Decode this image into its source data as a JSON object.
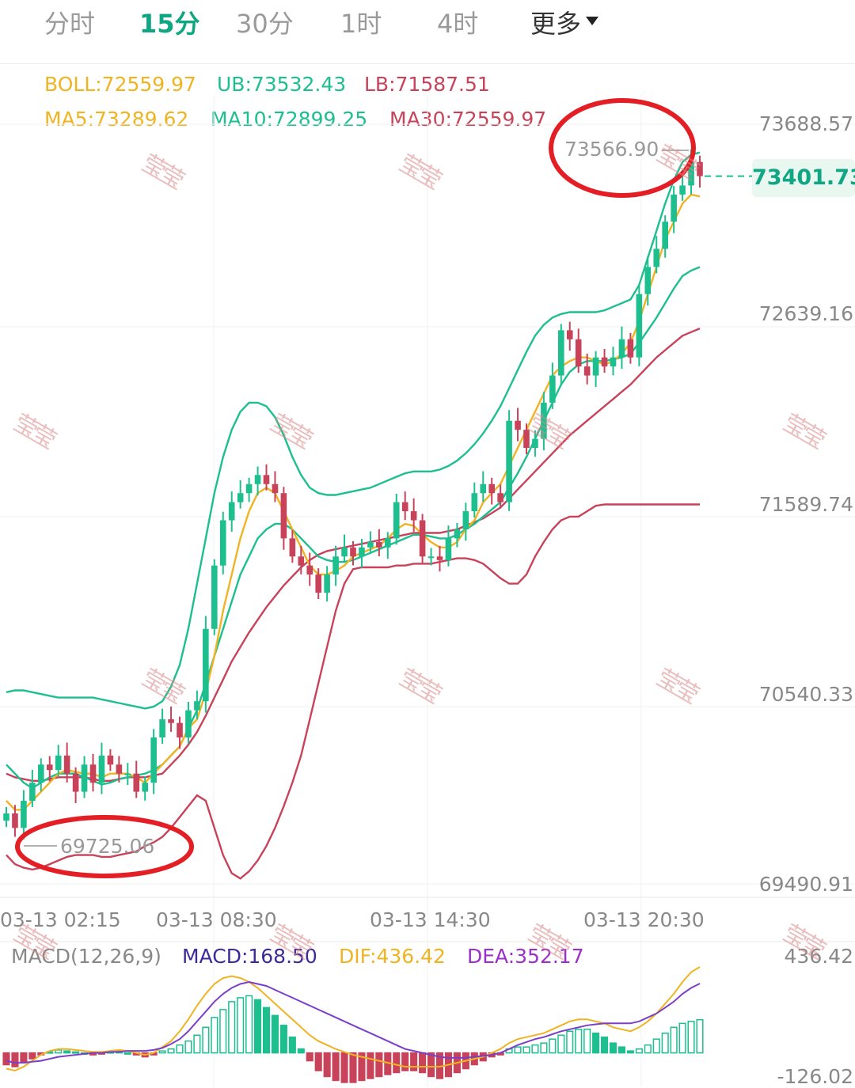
{
  "tabs": [
    {
      "label": "分时",
      "active": false
    },
    {
      "label": "15分",
      "active": true
    },
    {
      "label": "30分",
      "active": false
    },
    {
      "label": "1时",
      "active": false
    },
    {
      "label": "4时",
      "active": false
    },
    {
      "label": "更多",
      "active": false
    }
  ],
  "indicators": {
    "boll": "BOLL:72559.97",
    "ub": "UB:73532.43",
    "lb": "LB:71587.51",
    "ma5": "MA5:73289.62",
    "ma10": "MA10:72899.25",
    "ma30": "MA30:72559.97"
  },
  "colors": {
    "up": "#1dbf8f",
    "down": "#c8425a",
    "ma5": "#f0b321",
    "ma10": "#1dbf8f",
    "ma30": "#c8425a",
    "macd_line": "#7b3fc9",
    "dif_line": "#f0b321",
    "accent": "#11a683",
    "annotation": "#e31e24",
    "macd_label": "#3d2a9c",
    "dea_label": "#9b30c9"
  },
  "last_price": "73401.73",
  "annotations": {
    "high": "73566.90",
    "low": "69725.06"
  },
  "watermark": "莹莹",
  "macd_panel": {
    "title": "MACD(12,26,9)",
    "macd": "MACD:168.50",
    "dif": "DIF:436.42",
    "dea": "DEA:352.17",
    "top_label": "436.42",
    "bottom_label": "-126.02"
  },
  "chart_data": {
    "type": "candlestick",
    "y_ticks": [
      "73688.57",
      "72639.16",
      "71589.74",
      "70540.33",
      "69490.91"
    ],
    "x_ticks": [
      "03-13 02:15",
      "03-13 08:30",
      "03-13 14:30",
      "03-13 20:30"
    ],
    "ylim": [
      69490.91,
      73688.57
    ],
    "candle_close": [
      69880,
      69800,
      69950,
      70050,
      70150,
      70120,
      70200,
      70100,
      70000,
      70150,
      70050,
      70200,
      70150,
      70100,
      70100,
      70000,
      70050,
      70300,
      70400,
      70380,
      70300,
      70450,
      70500,
      70900,
      71250,
      71500,
      71600,
      71650,
      71700,
      71750,
      71700,
      71650,
      71400,
      71300,
      71250,
      71200,
      71100,
      71200,
      71300,
      71350,
      71300,
      71350,
      71380,
      71350,
      71400,
      71600,
      71550,
      71500,
      71300,
      71300,
      71280,
      71400,
      71450,
      71550,
      71650,
      71700,
      71650,
      71600,
      72050,
      72000,
      71900,
      71950,
      72150,
      72300,
      72550,
      72500,
      72350,
      72300,
      72400,
      72350,
      72400,
      72500,
      72400,
      72750,
      72900,
      73000,
      73150,
      73300,
      73350,
      73480,
      73401.73
    ],
    "ma5": [
      69950,
      69900,
      69900,
      69950,
      70000,
      70050,
      70100,
      70120,
      70110,
      70100,
      70100,
      70080,
      70100,
      70100,
      70100,
      70080,
      70050,
      70100,
      70150,
      70200,
      70250,
      70350,
      70400,
      70550,
      70750,
      71000,
      71200,
      71400,
      71550,
      71650,
      71680,
      71650,
      71550,
      71450,
      71350,
      71250,
      71200,
      71200,
      71220,
      71250,
      71300,
      71320,
      71340,
      71360,
      71400,
      71450,
      71480,
      71470,
      71420,
      71380,
      71350,
      71350,
      71380,
      71450,
      71500,
      71600,
      71650,
      71700,
      71800,
      71900,
      72000,
      72100,
      72200,
      72300,
      72350,
      72380,
      72400,
      72400,
      72380,
      72360,
      72380,
      72420,
      72480,
      72600,
      72750,
      72900,
      73050,
      73150,
      73250,
      73300,
      73289.62
    ],
    "ma10": [
      70150,
      70100,
      70050,
      70020,
      70050,
      70080,
      70100,
      70100,
      70100,
      70080,
      70060,
      70040,
      70050,
      70070,
      70080,
      70090,
      70100,
      70120,
      70150,
      70200,
      70250,
      70350,
      70450,
      70600,
      70750,
      70900,
      71050,
      71200,
      71300,
      71400,
      71450,
      71480,
      71480,
      71450,
      71400,
      71350,
      71300,
      71280,
      71270,
      71270,
      71280,
      71300,
      71320,
      71340,
      71360,
      71380,
      71400,
      71420,
      71420,
      71410,
      71400,
      71400,
      71420,
      71450,
      71480,
      71520,
      71560,
      71600,
      71680,
      71760,
      71850,
      71950,
      72050,
      72150,
      72250,
      72320,
      72360,
      72380,
      72380,
      72380,
      72390,
      72400,
      72420,
      72480,
      72550,
      72620,
      72700,
      72780,
      72850,
      72880,
      72899.25
    ],
    "ma30": [
      70100,
      70080,
      70070,
      70060,
      70060,
      70070,
      70080,
      70080,
      70080,
      70080,
      70070,
      70060,
      70060,
      70070,
      70080,
      70080,
      70080,
      70090,
      70100,
      70150,
      70200,
      70260,
      70330,
      70420,
      70520,
      70620,
      70720,
      70800,
      70880,
      70950,
      71020,
      71080,
      71140,
      71190,
      71240,
      71280,
      71310,
      71330,
      71340,
      71350,
      71360,
      71370,
      71380,
      71390,
      71400,
      71410,
      71420,
      71430,
      71430,
      71430,
      71430,
      71440,
      71450,
      71470,
      71490,
      71510,
      71540,
      71570,
      71620,
      71670,
      71720,
      71770,
      71820,
      71870,
      71920,
      71970,
      72010,
      72050,
      72090,
      72130,
      72170,
      72210,
      72250,
      72300,
      72350,
      72400,
      72440,
      72480,
      72520,
      72540,
      72559.97
    ],
    "ub": [
      70550,
      70560,
      70560,
      70550,
      70540,
      70530,
      70520,
      70520,
      70520,
      70520,
      70520,
      70510,
      70500,
      70490,
      70480,
      70470,
      70460,
      70470,
      70500,
      70580,
      70700,
      70900,
      71150,
      71400,
      71650,
      71850,
      72000,
      72100,
      72150,
      72150,
      72130,
      72070,
      71970,
      71850,
      71750,
      71680,
      71650,
      71640,
      71640,
      71650,
      71660,
      71670,
      71680,
      71700,
      71720,
      71740,
      71760,
      71770,
      71770,
      71770,
      71780,
      71800,
      71830,
      71870,
      71920,
      71980,
      72050,
      72130,
      72230,
      72330,
      72430,
      72520,
      72580,
      72620,
      72640,
      72650,
      72650,
      72650,
      72650,
      72660,
      72680,
      72700,
      72720,
      72800,
      72950,
      73100,
      73250,
      73380,
      73480,
      73520,
      73532.43
    ],
    "lb": [
      69650,
      69600,
      69580,
      69570,
      69580,
      69600,
      69620,
      69640,
      69650,
      69650,
      69650,
      69640,
      69640,
      69650,
      69660,
      69670,
      69700,
      69720,
      69750,
      69800,
      69860,
      69920,
      69980,
      69950,
      69800,
      69650,
      69550,
      69520,
      69560,
      69620,
      69700,
      69800,
      69920,
      70050,
      70200,
      70400,
      70600,
      70800,
      71000,
      71150,
      71230,
      71240,
      71240,
      71240,
      71240,
      71250,
      71250,
      71260,
      71260,
      71260,
      71270,
      71280,
      71290,
      71290,
      71280,
      71260,
      71220,
      71180,
      71150,
      71150,
      71200,
      71300,
      71380,
      71450,
      71500,
      71520,
      71520,
      71550,
      71580,
      71587.51,
      71587.51,
      71587.51,
      71587.51,
      71587.51,
      71587.51,
      71587.51,
      71587.51,
      71587.51,
      71587.51,
      71587.51,
      71587.51
    ],
    "macd_hist": [
      -60,
      -70,
      -50,
      -30,
      -10,
      5,
      15,
      10,
      5,
      0,
      -10,
      -5,
      5,
      10,
      0,
      -10,
      -20,
      -10,
      10,
      20,
      40,
      60,
      90,
      130,
      180,
      220,
      260,
      280,
      290,
      270,
      230,
      190,
      140,
      80,
      20,
      -40,
      -90,
      -120,
      -140,
      -150,
      -150,
      -140,
      -130,
      -120,
      -110,
      -100,
      -90,
      -90,
      -100,
      -120,
      -130,
      -120,
      -100,
      -80,
      -60,
      -40,
      -20,
      -10,
      20,
      30,
      30,
      40,
      50,
      70,
      90,
      110,
      120,
      120,
      100,
      80,
      50,
      30,
      10,
      20,
      40,
      70,
      100,
      130,
      150,
      160,
      168.5
    ],
    "dif": [
      -80,
      -90,
      -70,
      -40,
      -10,
      10,
      20,
      20,
      15,
      10,
      5,
      5,
      10,
      15,
      10,
      0,
      -10,
      0,
      30,
      60,
      110,
      170,
      240,
      300,
      350,
      380,
      390,
      380,
      360,
      330,
      290,
      250,
      210,
      170,
      130,
      90,
      60,
      40,
      20,
      5,
      -10,
      -20,
      -30,
      -40,
      -50,
      -60,
      -70,
      -70,
      -70,
      -70,
      -70,
      -60,
      -50,
      -40,
      -30,
      -20,
      0,
      20,
      50,
      70,
      80,
      90,
      100,
      120,
      140,
      160,
      170,
      170,
      160,
      150,
      130,
      120,
      110,
      130,
      160,
      200,
      250,
      300,
      360,
      410,
      436.42
    ],
    "dea": [
      -40,
      -50,
      -50,
      -45,
      -40,
      -30,
      -20,
      -15,
      -10,
      -5,
      0,
      0,
      5,
      5,
      10,
      10,
      10,
      15,
      25,
      45,
      70,
      110,
      160,
      210,
      260,
      300,
      330,
      350,
      360,
      350,
      340,
      320,
      300,
      280,
      260,
      240,
      220,
      200,
      180,
      160,
      140,
      120,
      100,
      80,
      60,
      40,
      20,
      10,
      0,
      -10,
      -20,
      -25,
      -25,
      -25,
      -20,
      -15,
      -10,
      0,
      20,
      40,
      55,
      70,
      80,
      95,
      110,
      120,
      130,
      140,
      145,
      150,
      150,
      150,
      150,
      160,
      180,
      200,
      230,
      260,
      300,
      330,
      352.17
    ],
    "macd_ylim": [
      -126.02,
      436.42
    ]
  }
}
